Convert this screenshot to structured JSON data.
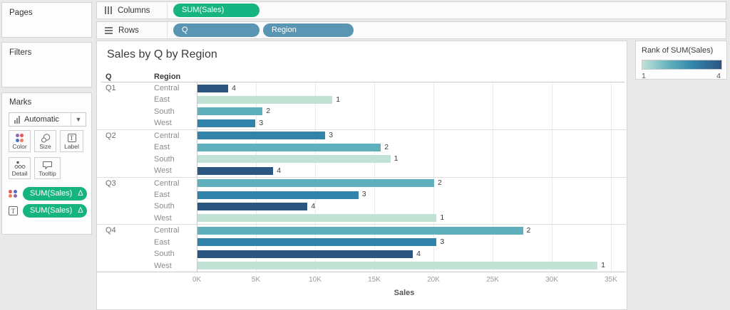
{
  "shelves": {
    "columns": {
      "label": "Columns",
      "pills": [
        {
          "label": "SUM(Sales)"
        }
      ]
    },
    "rows": {
      "label": "Rows",
      "pills": [
        {
          "label": "Q"
        },
        {
          "label": "Region"
        }
      ]
    }
  },
  "sidebar": {
    "pages": {
      "label": "Pages"
    },
    "filters": {
      "label": "Filters"
    },
    "marks": {
      "label": "Marks",
      "mark_type_selector": "Automatic",
      "buttons": [
        {
          "label": "Color"
        },
        {
          "label": "Size"
        },
        {
          "label": "Label"
        },
        {
          "label": "Detail"
        },
        {
          "label": "Tooltip"
        }
      ],
      "pills": [
        {
          "icon": "color-dots-icon",
          "label": "SUM(Sales)",
          "badge": "Δ"
        },
        {
          "icon": "text-icon",
          "label": "SUM(Sales)",
          "badge": "Δ"
        }
      ]
    }
  },
  "legend": {
    "title": "Rank of SUM(Sales)",
    "min_label": "1",
    "max_label": "4"
  },
  "colors": {
    "measure_pill": "#16b481",
    "dimension_pill": "#5a96b4",
    "rank_gradient": [
      "#c0e3d6",
      "#5eb0bc",
      "#3283aa",
      "#2c5680"
    ]
  },
  "chart_data": {
    "type": "bar",
    "orientation": "horizontal",
    "title": "Sales by Q by Region",
    "row_header_q": "Q",
    "row_header_region": "Region",
    "xlabel": "Sales",
    "x_ticks": [
      "0K",
      "5K",
      "10K",
      "15K",
      "20K",
      "25K",
      "30K",
      "35K"
    ],
    "xlim": [
      0,
      35000
    ],
    "grid": true,
    "bar_label_field": "rank",
    "rank_colors": {
      "1": "#c0e3d6",
      "2": "#5eb0bc",
      "3": "#3283aa",
      "4": "#2c5680"
    },
    "groups": [
      {
        "q": "Q1",
        "rows": [
          {
            "region": "Central",
            "sales": 2600,
            "rank": 4
          },
          {
            "region": "East",
            "sales": 11400,
            "rank": 1
          },
          {
            "region": "South",
            "sales": 5500,
            "rank": 2
          },
          {
            "region": "West",
            "sales": 4900,
            "rank": 3
          }
        ]
      },
      {
        "q": "Q2",
        "rows": [
          {
            "region": "Central",
            "sales": 10800,
            "rank": 3
          },
          {
            "region": "East",
            "sales": 15500,
            "rank": 2
          },
          {
            "region": "South",
            "sales": 16300,
            "rank": 1
          },
          {
            "region": "West",
            "sales": 6400,
            "rank": 4
          }
        ]
      },
      {
        "q": "Q3",
        "rows": [
          {
            "region": "Central",
            "sales": 20000,
            "rank": 2
          },
          {
            "region": "East",
            "sales": 13600,
            "rank": 3
          },
          {
            "region": "South",
            "sales": 9300,
            "rank": 4
          },
          {
            "region": "West",
            "sales": 20200,
            "rank": 1
          }
        ]
      },
      {
        "q": "Q4",
        "rows": [
          {
            "region": "Central",
            "sales": 27500,
            "rank": 2
          },
          {
            "region": "East",
            "sales": 20200,
            "rank": 3
          },
          {
            "region": "South",
            "sales": 18200,
            "rank": 4
          },
          {
            "region": "West",
            "sales": 33800,
            "rank": 1
          }
        ]
      }
    ]
  }
}
